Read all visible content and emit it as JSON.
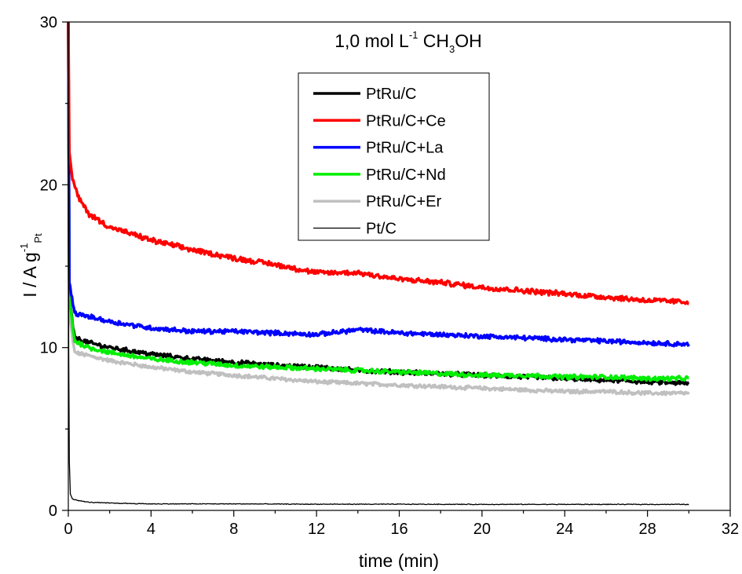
{
  "chart_data": {
    "type": "line",
    "title": "",
    "annotation": {
      "parts": [
        {
          "text": "1,0 mol L",
          "style": "normal"
        },
        {
          "text": "-1",
          "style": "sup"
        },
        {
          "text": " CH",
          "style": "normal"
        },
        {
          "text": "3",
          "style": "sub"
        },
        {
          "text": "OH",
          "style": "normal"
        }
      ]
    },
    "xlabel": "time (min)",
    "ylabel": {
      "parts": [
        {
          "text": "I / A g",
          "style": "normal"
        },
        {
          "text": "-1",
          "style": "sup"
        },
        {
          "text": "Pt",
          "style": "sub"
        }
      ]
    },
    "xlim": [
      0,
      32
    ],
    "ylim": [
      0,
      30
    ],
    "xticks": [
      0,
      4,
      8,
      12,
      16,
      20,
      24,
      28,
      32
    ],
    "yticks": [
      0,
      10,
      20,
      30
    ],
    "grid": false,
    "legend_position": "top-center",
    "series": [
      {
        "name": "PtRu/C",
        "color": "#000000",
        "width": 3.5,
        "noise": 0.12,
        "x": [
          0,
          0.05,
          0.3,
          1,
          2,
          4,
          6,
          8,
          10,
          12,
          14,
          16,
          18,
          20,
          22,
          24,
          26,
          28,
          30
        ],
        "y": [
          30,
          13,
          10.6,
          10.3,
          10.0,
          9.6,
          9.3,
          9.1,
          8.9,
          8.8,
          8.6,
          8.5,
          8.4,
          8.3,
          8.2,
          8.1,
          8.0,
          7.9,
          7.8
        ]
      },
      {
        "name": "PtRu/C+Ce",
        "color": "#ff0000",
        "width": 3.5,
        "noise": 0.14,
        "x": [
          0,
          0.05,
          0.2,
          0.5,
          1,
          2,
          4,
          6,
          8,
          10,
          12,
          14,
          16,
          18,
          20,
          22,
          24,
          26,
          28,
          30
        ],
        "y": [
          30,
          22,
          20.3,
          19.2,
          18.2,
          17.4,
          16.6,
          16.0,
          15.5,
          15.1,
          14.6,
          14.6,
          14.2,
          14.0,
          13.7,
          13.5,
          13.3,
          13.1,
          12.9,
          12.8
        ]
      },
      {
        "name": "PtRu/C+La",
        "color": "#0000ff",
        "width": 3.5,
        "noise": 0.12,
        "x": [
          0,
          0.05,
          0.3,
          1,
          2,
          4,
          6,
          8,
          10,
          12,
          14,
          16,
          18,
          20,
          22,
          24,
          26,
          28,
          30
        ],
        "y": [
          30,
          14,
          12.1,
          11.9,
          11.6,
          11.2,
          11.0,
          11.0,
          10.9,
          10.8,
          11.1,
          10.9,
          10.8,
          10.7,
          10.6,
          10.5,
          10.4,
          10.3,
          10.2
        ]
      },
      {
        "name": "PtRu/C+Nd",
        "color": "#00ee00",
        "width": 3.5,
        "noise": 0.12,
        "x": [
          0,
          0.05,
          0.3,
          1,
          2,
          4,
          6,
          8,
          10,
          12,
          14,
          16,
          18,
          20,
          22,
          24,
          26,
          28,
          30
        ],
        "y": [
          30,
          13,
          10.4,
          10.0,
          9.7,
          9.3,
          9.1,
          8.9,
          8.8,
          8.7,
          8.6,
          8.5,
          8.4,
          8.3,
          8.3,
          8.2,
          8.2,
          8.1,
          8.1
        ]
      },
      {
        "name": "PtRu/C+Er",
        "color": "#c0c0c0",
        "width": 3.5,
        "noise": 0.1,
        "x": [
          0,
          0.05,
          0.3,
          1,
          2,
          4,
          6,
          8,
          10,
          12,
          14,
          16,
          18,
          20,
          22,
          24,
          26,
          28,
          30
        ],
        "y": [
          30,
          12,
          9.7,
          9.5,
          9.2,
          8.8,
          8.5,
          8.3,
          8.1,
          7.9,
          7.8,
          7.7,
          7.6,
          7.5,
          7.4,
          7.3,
          7.3,
          7.2,
          7.2
        ]
      },
      {
        "name": "Pt/C",
        "color": "#000000",
        "width": 1.3,
        "noise": 0.02,
        "x": [
          0,
          0.02,
          0.05,
          0.1,
          0.2,
          0.5,
          1,
          2,
          4,
          8,
          12,
          16,
          20,
          24,
          28,
          30
        ],
        "y": [
          30,
          10,
          3,
          1.0,
          0.7,
          0.6,
          0.5,
          0.45,
          0.4,
          0.4,
          0.38,
          0.38,
          0.37,
          0.37,
          0.37,
          0.37
        ]
      }
    ]
  }
}
